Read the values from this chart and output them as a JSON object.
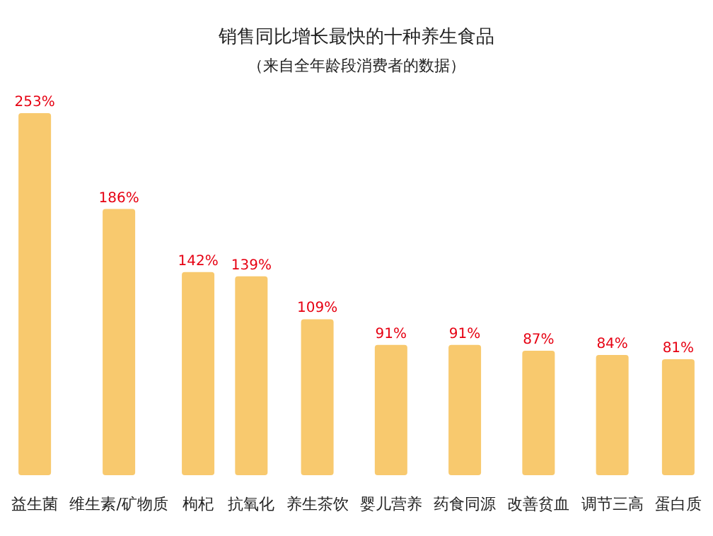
{
  "chart_data": {
    "type": "bar",
    "title": "销售同比增长最快的十种养生食品",
    "subtitle": "（来自全年龄段消费者的数据）",
    "categories": [
      "益生菌",
      "维生素/矿物质",
      "枸杞",
      "抗氧化",
      "养生茶饮",
      "婴儿营养",
      "药食同源",
      "改善贫血",
      "调节三高",
      "蛋白质"
    ],
    "values": [
      253,
      186,
      142,
      139,
      109,
      91,
      91,
      87,
      84,
      81
    ],
    "value_labels": [
      "253%",
      "186%",
      "142%",
      "139%",
      "109%",
      "91%",
      "91%",
      "87%",
      "84%",
      "81%"
    ],
    "color": "#f8c96e"
  }
}
